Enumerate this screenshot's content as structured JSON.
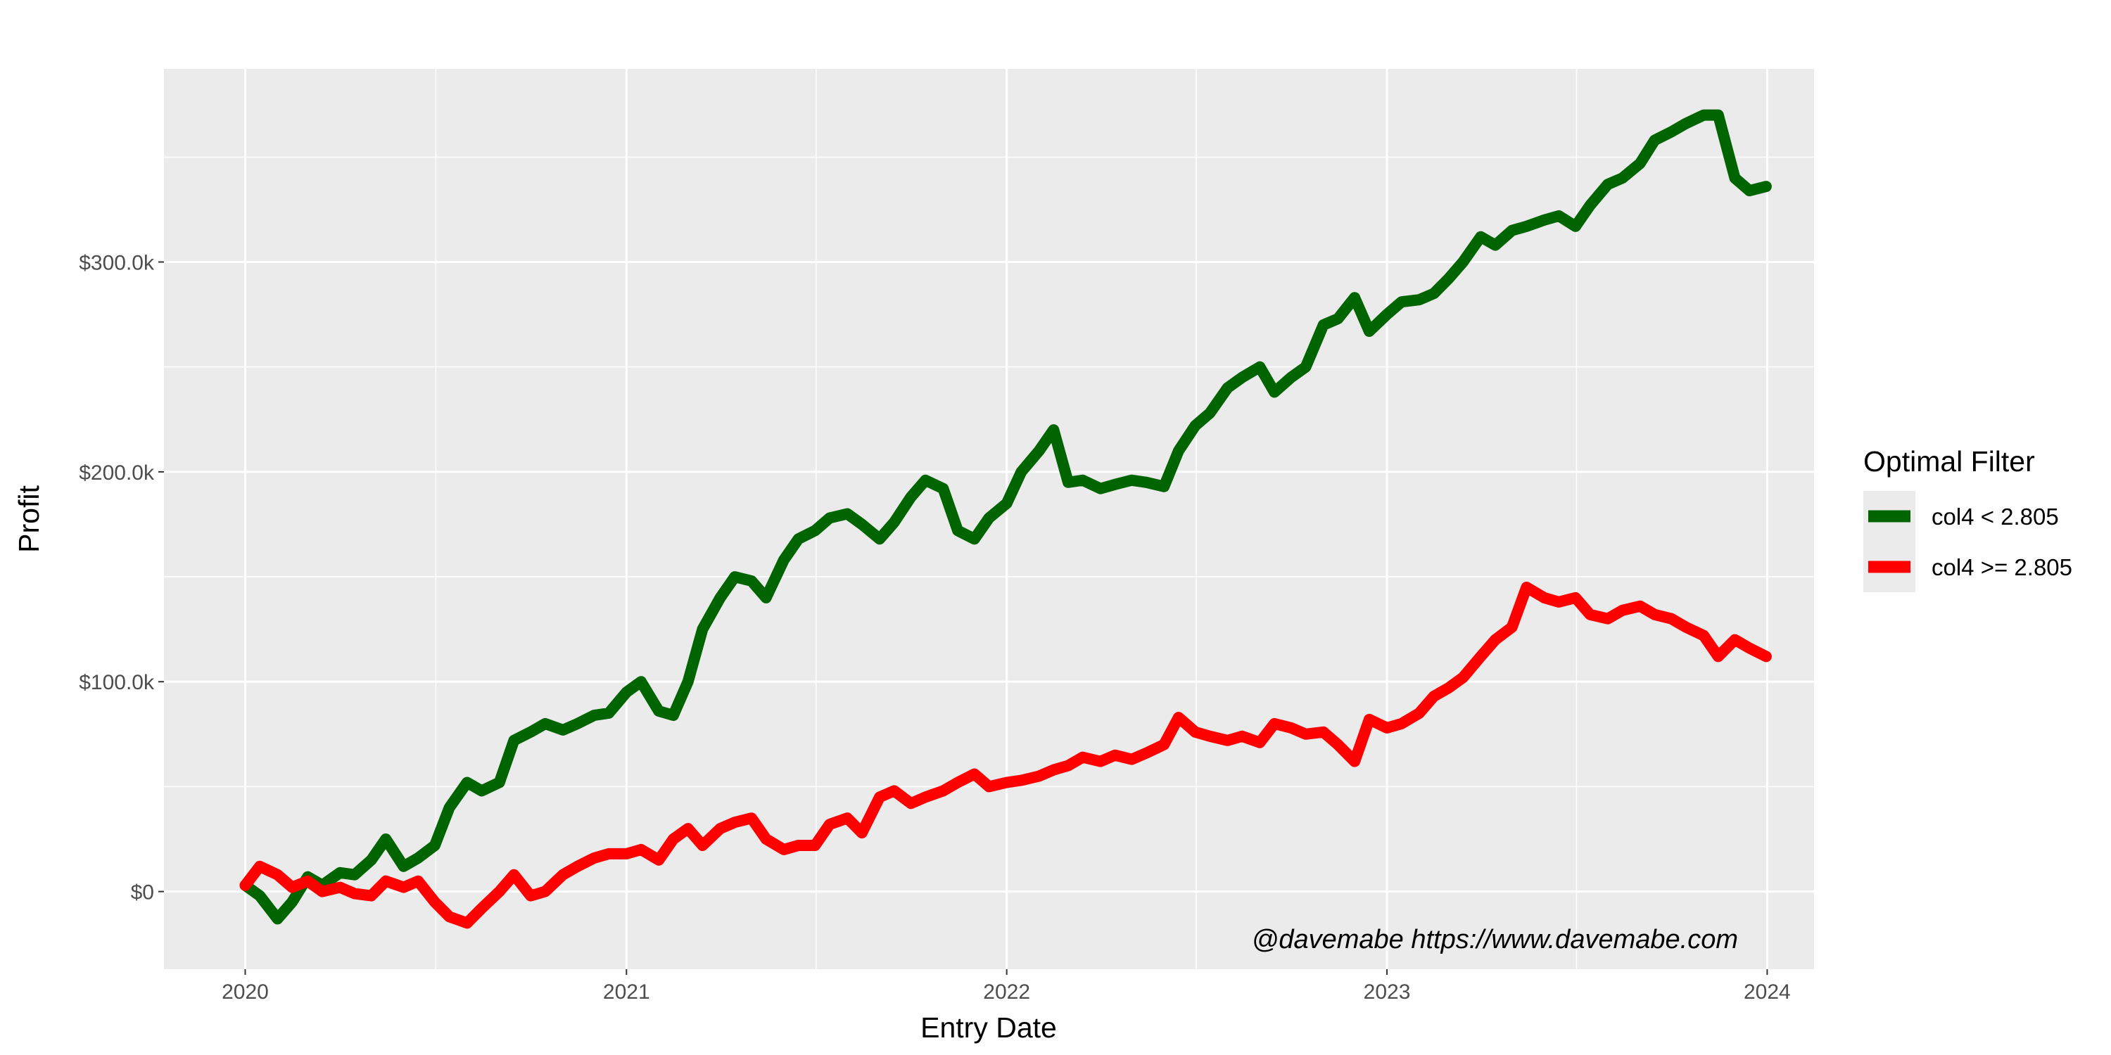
{
  "chart_data": {
    "type": "line",
    "xlabel": "Entry Date",
    "ylabel": "Profit",
    "x_ticks": [
      "2020",
      "2021",
      "2022",
      "2023",
      "2024"
    ],
    "y_ticks": [
      "$0",
      "$100.0k",
      "$200.0k",
      "$300.0k"
    ],
    "xlim": [
      "2019-10-15",
      "2024-02-15"
    ],
    "ylim": [
      -37000,
      392000
    ],
    "grid": true,
    "legend": {
      "title": "Optimal Filter",
      "position": "right"
    },
    "annotation": "@davemabe https://www.davemabe.com",
    "colors": {
      "panel_bg": "#ebebeb",
      "grid": "#ffffff",
      "green": "#006400",
      "red": "#ff0000"
    },
    "series": [
      {
        "name": "col4 < 2.805",
        "color": "#006400",
        "x": [
          "2020-01-01",
          "2020-01-15",
          "2020-02-01",
          "2020-02-15",
          "2020-03-01",
          "2020-03-15",
          "2020-04-01",
          "2020-04-15",
          "2020-05-01",
          "2020-05-15",
          "2020-06-01",
          "2020-06-15",
          "2020-07-01",
          "2020-07-15",
          "2020-08-01",
          "2020-08-15",
          "2020-09-01",
          "2020-09-15",
          "2020-10-01",
          "2020-10-15",
          "2020-11-01",
          "2020-11-15",
          "2020-12-01",
          "2020-12-15",
          "2021-01-01",
          "2021-01-15",
          "2021-02-01",
          "2021-02-15",
          "2021-03-01",
          "2021-03-15",
          "2021-04-01",
          "2021-04-15",
          "2021-05-01",
          "2021-05-15",
          "2021-06-01",
          "2021-06-15",
          "2021-07-01",
          "2021-07-15",
          "2021-08-01",
          "2021-08-15",
          "2021-09-01",
          "2021-09-15",
          "2021-10-01",
          "2021-10-15",
          "2021-11-01",
          "2021-11-15",
          "2021-12-01",
          "2021-12-15",
          "2022-01-01",
          "2022-01-15",
          "2022-02-01",
          "2022-02-15",
          "2022-03-01",
          "2022-03-15",
          "2022-04-01",
          "2022-04-15",
          "2022-05-01",
          "2022-05-15",
          "2022-06-01",
          "2022-06-15",
          "2022-07-01",
          "2022-07-15",
          "2022-08-01",
          "2022-08-15",
          "2022-09-01",
          "2022-09-15",
          "2022-10-01",
          "2022-10-15",
          "2022-11-01",
          "2022-11-15",
          "2022-12-01",
          "2022-12-15",
          "2023-01-01",
          "2023-01-15",
          "2023-02-01",
          "2023-02-15",
          "2023-03-01",
          "2023-03-15",
          "2023-04-01",
          "2023-04-15",
          "2023-05-01",
          "2023-05-15",
          "2023-06-01",
          "2023-06-15",
          "2023-07-01",
          "2023-07-15",
          "2023-08-01",
          "2023-08-15",
          "2023-09-01",
          "2023-09-15",
          "2023-10-01",
          "2023-10-15",
          "2023-11-01",
          "2023-11-15",
          "2023-12-01",
          "2023-12-15",
          "2023-12-31"
        ],
        "values": [
          3000,
          -2000,
          -13000,
          -5000,
          7000,
          3000,
          9000,
          8000,
          15000,
          25000,
          12000,
          16000,
          22000,
          40000,
          52000,
          48000,
          52000,
          72000,
          76000,
          80000,
          77000,
          80000,
          84000,
          85000,
          95000,
          100000,
          86000,
          84000,
          100000,
          125000,
          140000,
          150000,
          148000,
          140000,
          158000,
          168000,
          172000,
          178000,
          180000,
          175000,
          168000,
          176000,
          188000,
          196000,
          192000,
          172000,
          168000,
          178000,
          185000,
          200000,
          210000,
          220000,
          195000,
          196000,
          192000,
          194000,
          196000,
          195000,
          193000,
          210000,
          222000,
          228000,
          240000,
          245000,
          250000,
          238000,
          245000,
          250000,
          270000,
          273000,
          283000,
          267000,
          275000,
          281000,
          282000,
          285000,
          292000,
          300000,
          312000,
          308000,
          315000,
          317000,
          320000,
          322000,
          317000,
          327000,
          337000,
          340000,
          347000,
          358000,
          362000,
          366000,
          370000,
          370000,
          340000,
          334000,
          336000
        ]
      },
      {
        "name": "col4 >= 2.805",
        "color": "#ff0000",
        "x": [
          "2020-01-01",
          "2020-01-15",
          "2020-02-01",
          "2020-02-15",
          "2020-03-01",
          "2020-03-15",
          "2020-04-01",
          "2020-04-15",
          "2020-05-01",
          "2020-05-15",
          "2020-06-01",
          "2020-06-15",
          "2020-07-01",
          "2020-07-15",
          "2020-08-01",
          "2020-08-15",
          "2020-09-01",
          "2020-09-15",
          "2020-10-01",
          "2020-10-15",
          "2020-11-01",
          "2020-11-15",
          "2020-12-01",
          "2020-12-15",
          "2021-01-01",
          "2021-01-15",
          "2021-02-01",
          "2021-02-15",
          "2021-03-01",
          "2021-03-15",
          "2021-04-01",
          "2021-04-15",
          "2021-05-01",
          "2021-05-15",
          "2021-06-01",
          "2021-06-15",
          "2021-07-01",
          "2021-07-15",
          "2021-08-01",
          "2021-08-15",
          "2021-09-01",
          "2021-09-15",
          "2021-10-01",
          "2021-10-15",
          "2021-11-01",
          "2021-11-15",
          "2021-12-01",
          "2021-12-15",
          "2022-01-01",
          "2022-01-15",
          "2022-02-01",
          "2022-02-15",
          "2022-03-01",
          "2022-03-15",
          "2022-04-01",
          "2022-04-15",
          "2022-05-01",
          "2022-05-15",
          "2022-06-01",
          "2022-06-15",
          "2022-07-01",
          "2022-07-15",
          "2022-08-01",
          "2022-08-15",
          "2022-09-01",
          "2022-09-15",
          "2022-10-01",
          "2022-10-15",
          "2022-11-01",
          "2022-11-15",
          "2022-12-01",
          "2022-12-15",
          "2023-01-01",
          "2023-01-15",
          "2023-02-01",
          "2023-02-15",
          "2023-03-01",
          "2023-03-15",
          "2023-04-01",
          "2023-04-15",
          "2023-05-01",
          "2023-05-15",
          "2023-06-01",
          "2023-06-15",
          "2023-07-01",
          "2023-07-15",
          "2023-08-01",
          "2023-08-15",
          "2023-09-01",
          "2023-09-15",
          "2023-10-01",
          "2023-10-15",
          "2023-11-01",
          "2023-11-15",
          "2023-12-01",
          "2023-12-15",
          "2023-12-31"
        ],
        "values": [
          3000,
          12000,
          8000,
          2000,
          5000,
          0,
          2000,
          -1000,
          -2000,
          5000,
          2000,
          5000,
          -5000,
          -12000,
          -15000,
          -8000,
          0,
          8000,
          -2000,
          0,
          8000,
          12000,
          16000,
          18000,
          18000,
          20000,
          15000,
          25000,
          30000,
          22000,
          30000,
          33000,
          35000,
          25000,
          20000,
          22000,
          22000,
          32000,
          35000,
          28000,
          45000,
          48000,
          42000,
          45000,
          48000,
          52000,
          56000,
          50000,
          52000,
          53000,
          55000,
          58000,
          60000,
          64000,
          62000,
          65000,
          63000,
          66000,
          70000,
          83000,
          76000,
          74000,
          72000,
          74000,
          71000,
          80000,
          78000,
          75000,
          76000,
          70000,
          62000,
          82000,
          78000,
          80000,
          85000,
          93000,
          97000,
          102000,
          112000,
          120000,
          126000,
          145000,
          140000,
          138000,
          140000,
          132000,
          130000,
          134000,
          136000,
          132000,
          130000,
          126000,
          122000,
          112000,
          120000,
          116000,
          112000
        ]
      }
    ]
  }
}
